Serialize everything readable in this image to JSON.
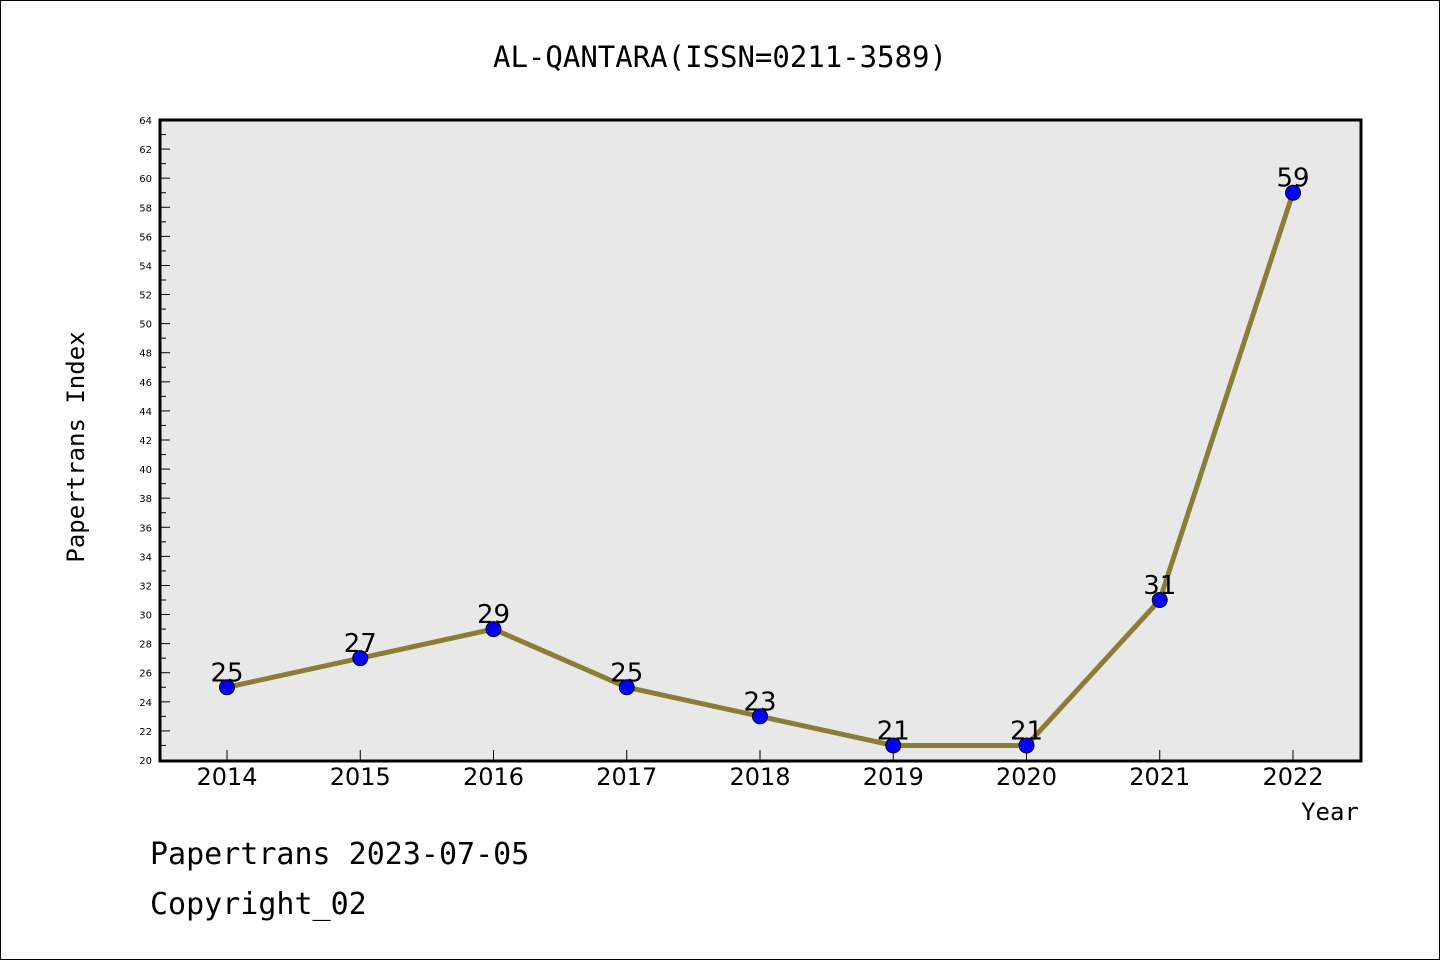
{
  "chart_data": {
    "type": "line",
    "title": "AL-QANTARA(ISSN=0211-3589)",
    "xlabel": "Year",
    "ylabel": "Papertrans Index",
    "categories": [
      "2014",
      "2015",
      "2016",
      "2017",
      "2018",
      "2019",
      "2020",
      "2021",
      "2022"
    ],
    "series": [
      {
        "values": [
          25,
          27,
          29,
          25,
          23,
          21,
          21,
          31,
          59
        ]
      }
    ],
    "data_labels": [
      "25",
      "27",
      "29",
      "25",
      "23",
      "21",
      "21",
      "31",
      "59"
    ],
    "ylim": [
      20,
      64
    ],
    "y_major_step": 2,
    "y_ticks": [
      "20",
      "22",
      "24",
      "26",
      "28",
      "30",
      "32",
      "34",
      "36",
      "38",
      "40",
      "42",
      "44",
      "46",
      "48",
      "50",
      "52",
      "54",
      "56",
      "58",
      "60",
      "62",
      "64"
    ],
    "grid": false,
    "legend": "none",
    "colors": {
      "line": "#8b7d35",
      "marker": "#0000ff",
      "plot_background": "#e8e8e8"
    }
  },
  "footer": {
    "line1": "Papertrans 2023-07-05",
    "line2": "Copyright_02"
  }
}
